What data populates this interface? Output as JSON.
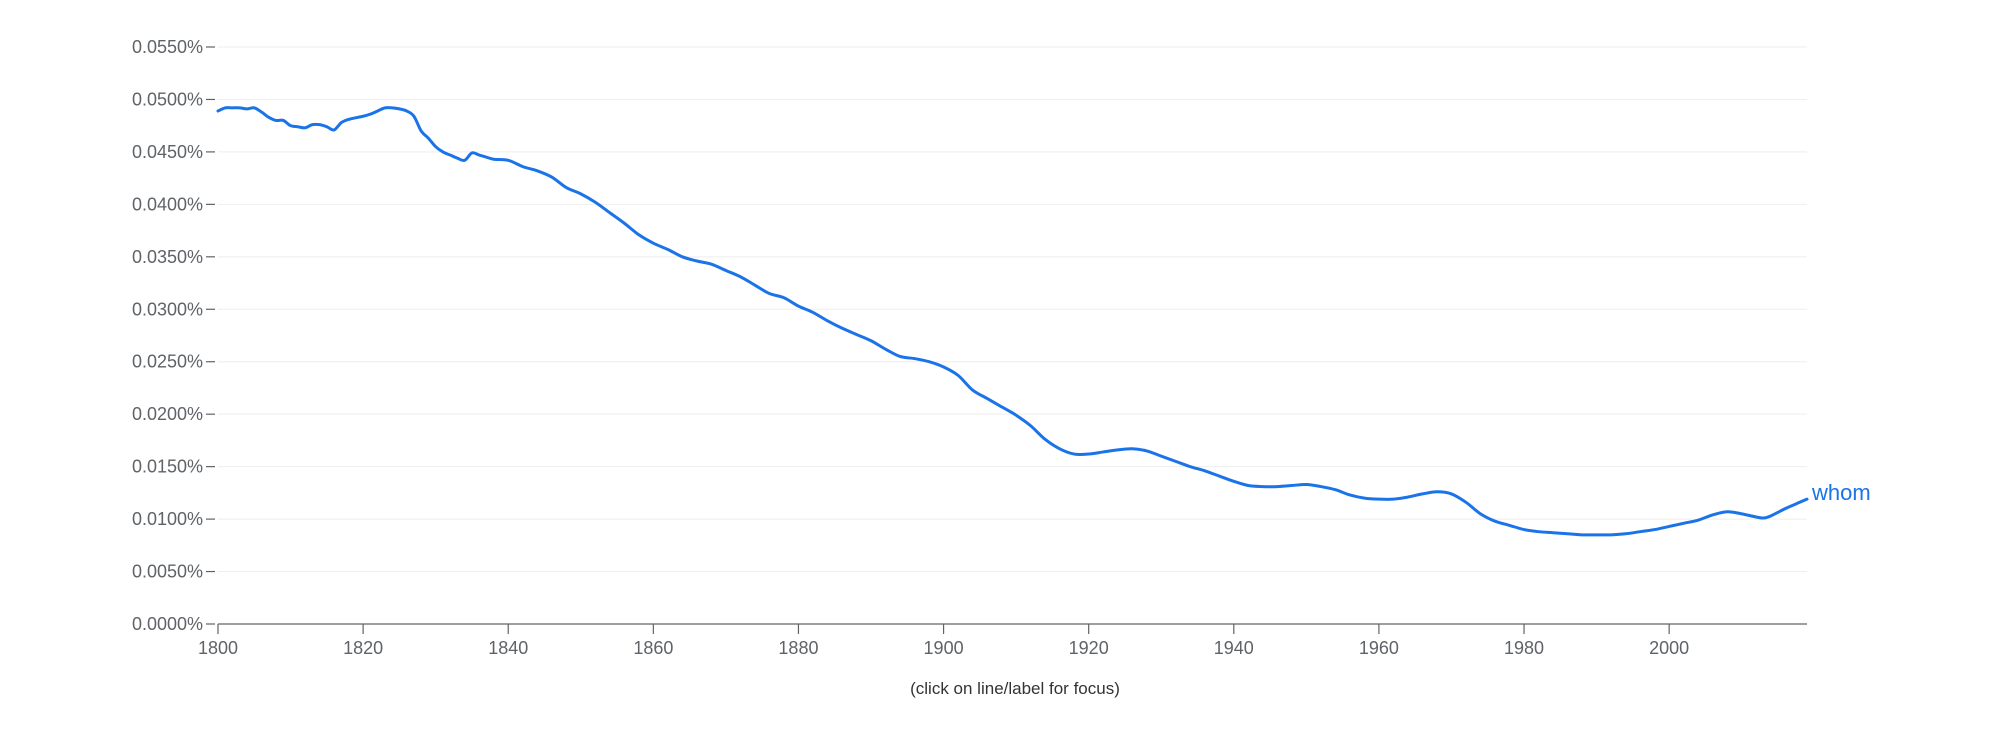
{
  "hint_text": "(click on line/label for focus)",
  "chart_data": {
    "type": "line",
    "x_range": [
      1800,
      2019
    ],
    "ylim": [
      0,
      0.055
    ],
    "y_unit": "%",
    "y_ticks": [
      0,
      0.005,
      0.01,
      0.015,
      0.02,
      0.025,
      0.03,
      0.035,
      0.04,
      0.045,
      0.05,
      0.055
    ],
    "y_tick_labels": [
      "0.0000%",
      "0.0050%",
      "0.0100%",
      "0.0150%",
      "0.0200%",
      "0.0250%",
      "0.0300%",
      "0.0350%",
      "0.0400%",
      "0.0450%",
      "0.0500%",
      "0.0550%"
    ],
    "x_ticks": [
      1800,
      1820,
      1840,
      1860,
      1880,
      1900,
      1920,
      1940,
      1960,
      1980,
      2000
    ],
    "x_tick_labels": [
      "1800",
      "1820",
      "1840",
      "1860",
      "1880",
      "1900",
      "1920",
      "1940",
      "1960",
      "1980",
      "2000"
    ],
    "grid": true,
    "series": [
      {
        "name": "whom",
        "color": "#1a73e8",
        "x": [
          1800,
          1801,
          1802,
          1803,
          1804,
          1805,
          1806,
          1807,
          1808,
          1809,
          1810,
          1811,
          1812,
          1813,
          1814,
          1815,
          1816,
          1817,
          1818,
          1820,
          1821,
          1822,
          1823,
          1824,
          1825,
          1826,
          1827,
          1828,
          1829,
          1830,
          1831,
          1832,
          1833,
          1834,
          1835,
          1836,
          1837,
          1838,
          1840,
          1842,
          1844,
          1846,
          1848,
          1850,
          1852,
          1854,
          1856,
          1858,
          1860,
          1862,
          1864,
          1866,
          1868,
          1870,
          1872,
          1874,
          1876,
          1878,
          1880,
          1882,
          1884,
          1886,
          1888,
          1890,
          1892,
          1894,
          1896,
          1898,
          1900,
          1902,
          1904,
          1906,
          1908,
          1910,
          1912,
          1914,
          1916,
          1918,
          1920,
          1922,
          1924,
          1926,
          1928,
          1930,
          1932,
          1934,
          1936,
          1938,
          1940,
          1942,
          1944,
          1946,
          1948,
          1950,
          1952,
          1954,
          1956,
          1958,
          1960,
          1962,
          1964,
          1966,
          1968,
          1970,
          1972,
          1974,
          1976,
          1978,
          1980,
          1982,
          1984,
          1986,
          1988,
          1990,
          1992,
          1994,
          1996,
          1998,
          2000,
          2002,
          2004,
          2006,
          2008,
          2010,
          2012,
          2013,
          2014,
          2016,
          2018,
          2019
        ],
        "values": [
          0.0489,
          0.0492,
          0.0492,
          0.0492,
          0.0491,
          0.0492,
          0.0488,
          0.0483,
          0.048,
          0.048,
          0.0475,
          0.0474,
          0.0473,
          0.0476,
          0.0476,
          0.0474,
          0.0471,
          0.0478,
          0.0481,
          0.0484,
          0.0486,
          0.0489,
          0.0492,
          0.0492,
          0.0491,
          0.0489,
          0.0484,
          0.047,
          0.0463,
          0.0455,
          0.045,
          0.0447,
          0.0444,
          0.0442,
          0.0449,
          0.0447,
          0.0445,
          0.0443,
          0.0442,
          0.0436,
          0.0432,
          0.0426,
          0.0416,
          0.041,
          0.0402,
          0.0392,
          0.0382,
          0.0371,
          0.0363,
          0.0357,
          0.035,
          0.0346,
          0.0343,
          0.0337,
          0.0331,
          0.0323,
          0.0315,
          0.0311,
          0.0303,
          0.0297,
          0.0289,
          0.0282,
          0.0276,
          0.027,
          0.0262,
          0.0255,
          0.0253,
          0.025,
          0.0245,
          0.0237,
          0.0223,
          0.0215,
          0.0207,
          0.0199,
          0.0189,
          0.0176,
          0.0167,
          0.0162,
          0.0162,
          0.0164,
          0.0166,
          0.0167,
          0.0165,
          0.016,
          0.0155,
          0.015,
          0.0146,
          0.0141,
          0.0136,
          0.0132,
          0.0131,
          0.0131,
          0.0132,
          0.0133,
          0.0131,
          0.0128,
          0.0123,
          0.012,
          0.0119,
          0.0119,
          0.0121,
          0.0124,
          0.0126,
          0.0124,
          0.0116,
          0.0105,
          0.0098,
          0.0094,
          0.009,
          0.0088,
          0.0087,
          0.0086,
          0.0085,
          0.0085,
          0.0085,
          0.0086,
          0.0088,
          0.009,
          0.0093,
          0.0096,
          0.0099,
          0.0104,
          0.0107,
          0.0105,
          0.0102,
          0.0101,
          0.0103,
          0.011,
          0.0116,
          0.0119
        ]
      }
    ]
  }
}
